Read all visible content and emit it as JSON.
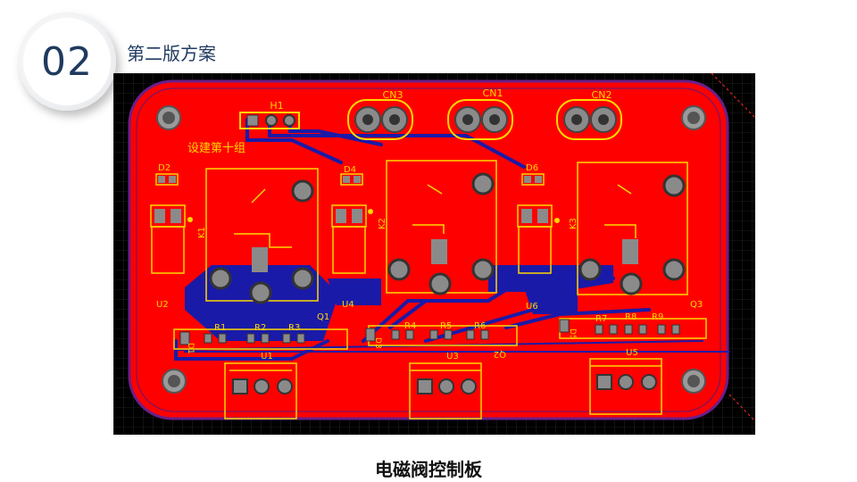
{
  "section": {
    "number": "02",
    "title": "第二版方案"
  },
  "caption": "电磁阀控制板",
  "pcb": {
    "annotation": "设建第十组",
    "connectors": [
      "CN3",
      "CN1",
      "CN2"
    ],
    "header": "H1",
    "relays": [
      "K1",
      "K2",
      "K3"
    ],
    "diodes_top": [
      "D2",
      "D4",
      "D6"
    ],
    "ics": [
      "U2",
      "U4",
      "U6"
    ],
    "resistors": [
      "R1",
      "R2",
      "R3",
      "R4",
      "R5",
      "R6",
      "R7",
      "R8",
      "R9"
    ],
    "transistors": [
      "Q1",
      "Q2",
      "Q3"
    ],
    "diodes_bottom": [
      "D1",
      "D3",
      "D5"
    ],
    "terminals": [
      "U1",
      "U3",
      "U5"
    ],
    "colors": {
      "background": "#000000",
      "copper_top": "#ff0000",
      "copper_bottom": "#1a1aa8",
      "silkscreen": "#ffd800",
      "pad": "#8a8a8a"
    }
  }
}
